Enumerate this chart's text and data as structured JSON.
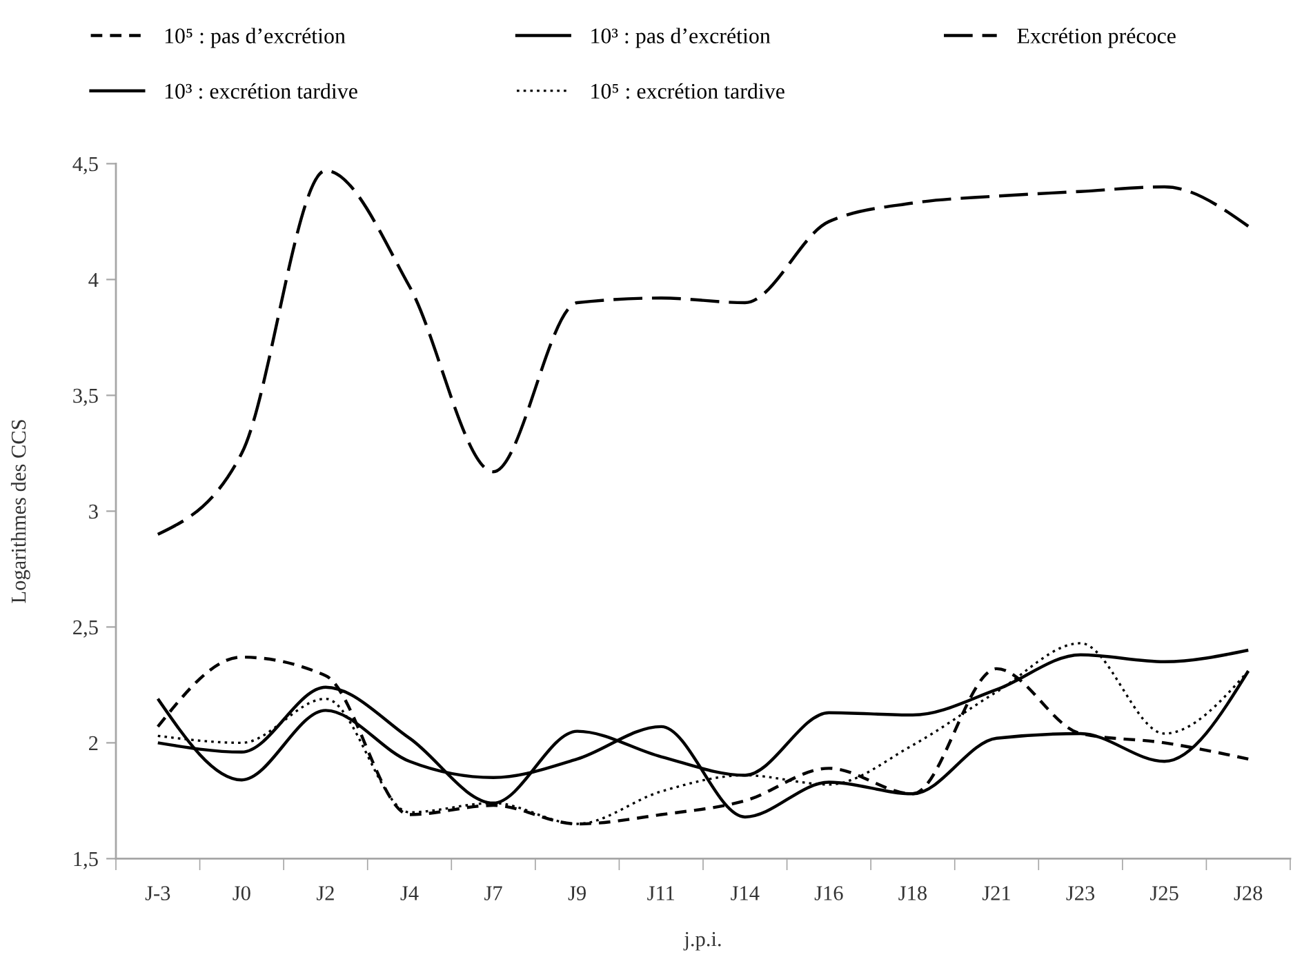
{
  "chart_data": {
    "type": "line",
    "categories": [
      "J-3",
      "J0",
      "J2",
      "J4",
      "J7",
      "J9",
      "J11",
      "J14",
      "J16",
      "J18",
      "J21",
      "J23",
      "J25",
      "J28"
    ],
    "xlabel": "j.p.i.",
    "ylabel": "Logarithmes des CCS",
    "ylim": [
      1.5,
      4.5
    ],
    "yticks": [
      {
        "value": 1.5,
        "label": "1,5"
      },
      2,
      {
        "value": 2.5,
        "label": "2,5"
      },
      3,
      {
        "value": 3.5,
        "label": "3,5"
      },
      4,
      {
        "value": 4.5,
        "label": "4,5"
      }
    ],
    "legend": "top",
    "series": [
      {
        "name": "10⁵ : pas d’excrétion",
        "color": "#000000",
        "line_style": "dashed",
        "values": [
          2.07,
          2.37,
          2.29,
          1.69,
          1.73,
          1.65,
          1.69,
          1.75,
          1.89,
          1.78,
          2.32,
          2.04,
          2.0,
          1.93
        ]
      },
      {
        "name": "10³ : pas d’excrétion",
        "color": "#000000",
        "line_style": "solid",
        "values": [
          2.19,
          1.84,
          2.14,
          1.92,
          1.85,
          1.93,
          2.07,
          1.68,
          1.83,
          1.78,
          2.02,
          2.04,
          1.92,
          2.31
        ]
      },
      {
        "name": "Excrétion précoce",
        "color": "#000000",
        "line_style": "dashed",
        "values": [
          2.9,
          3.25,
          4.47,
          3.97,
          3.17,
          3.9,
          3.92,
          3.9,
          4.25,
          4.33,
          4.36,
          4.38,
          4.4,
          4.23
        ]
      },
      {
        "name": "10³ : excrétion tardive",
        "color": "#000000",
        "line_style": "solid",
        "values": [
          2.0,
          1.96,
          2.24,
          2.02,
          1.74,
          2.05,
          1.94,
          1.86,
          2.13,
          2.12,
          2.23,
          2.38,
          2.35,
          2.4
        ]
      },
      {
        "name": "10⁵ : excrétion tardive",
        "color": "#000000",
        "line_style": "dotted",
        "values": [
          2.03,
          2.0,
          2.19,
          1.7,
          1.74,
          1.65,
          1.79,
          1.86,
          1.82,
          1.99,
          2.22,
          2.43,
          2.04,
          2.31
        ]
      }
    ]
  }
}
